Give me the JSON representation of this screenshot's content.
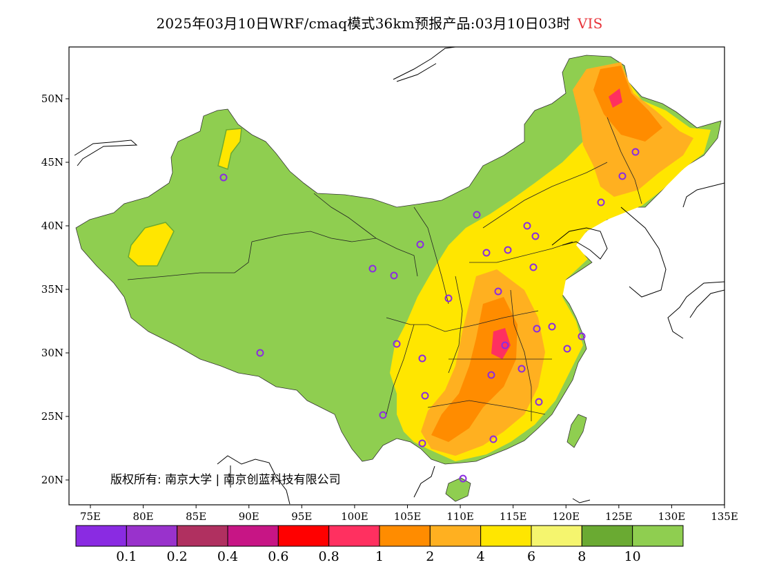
{
  "title": {
    "text": "2025年03月10日WRF/cmaq模式36km预报产品:03月10日03时",
    "variable": "VIS",
    "variable_color": "#e8343a"
  },
  "map": {
    "lon_labels": [
      "75E",
      "80E",
      "85E",
      "90E",
      "95E",
      "100E",
      "105E",
      "110E",
      "115E",
      "120E",
      "125E",
      "130E",
      "135E"
    ],
    "lat_labels": [
      "20N",
      "25N",
      "30N",
      "35N",
      "40N",
      "45N",
      "50N"
    ],
    "copyright": "版权所有: 南京大学 | 南京创蓝科技有限公司",
    "station_marker_color": "#8a2be2"
  },
  "legend": {
    "colors": [
      "#8a2be2",
      "#9932cc",
      "#b03060",
      "#c71585",
      "#ff0000",
      "#ff3060",
      "#ff8c00",
      "#ffb020",
      "#ffe600",
      "#f5f56e",
      "#6aaa32",
      "#8fce50"
    ],
    "thresholds": [
      "0.1",
      "0.2",
      "0.4",
      "0.6",
      "0.8",
      "1",
      "2",
      "4",
      "6",
      "8",
      "10"
    ]
  }
}
